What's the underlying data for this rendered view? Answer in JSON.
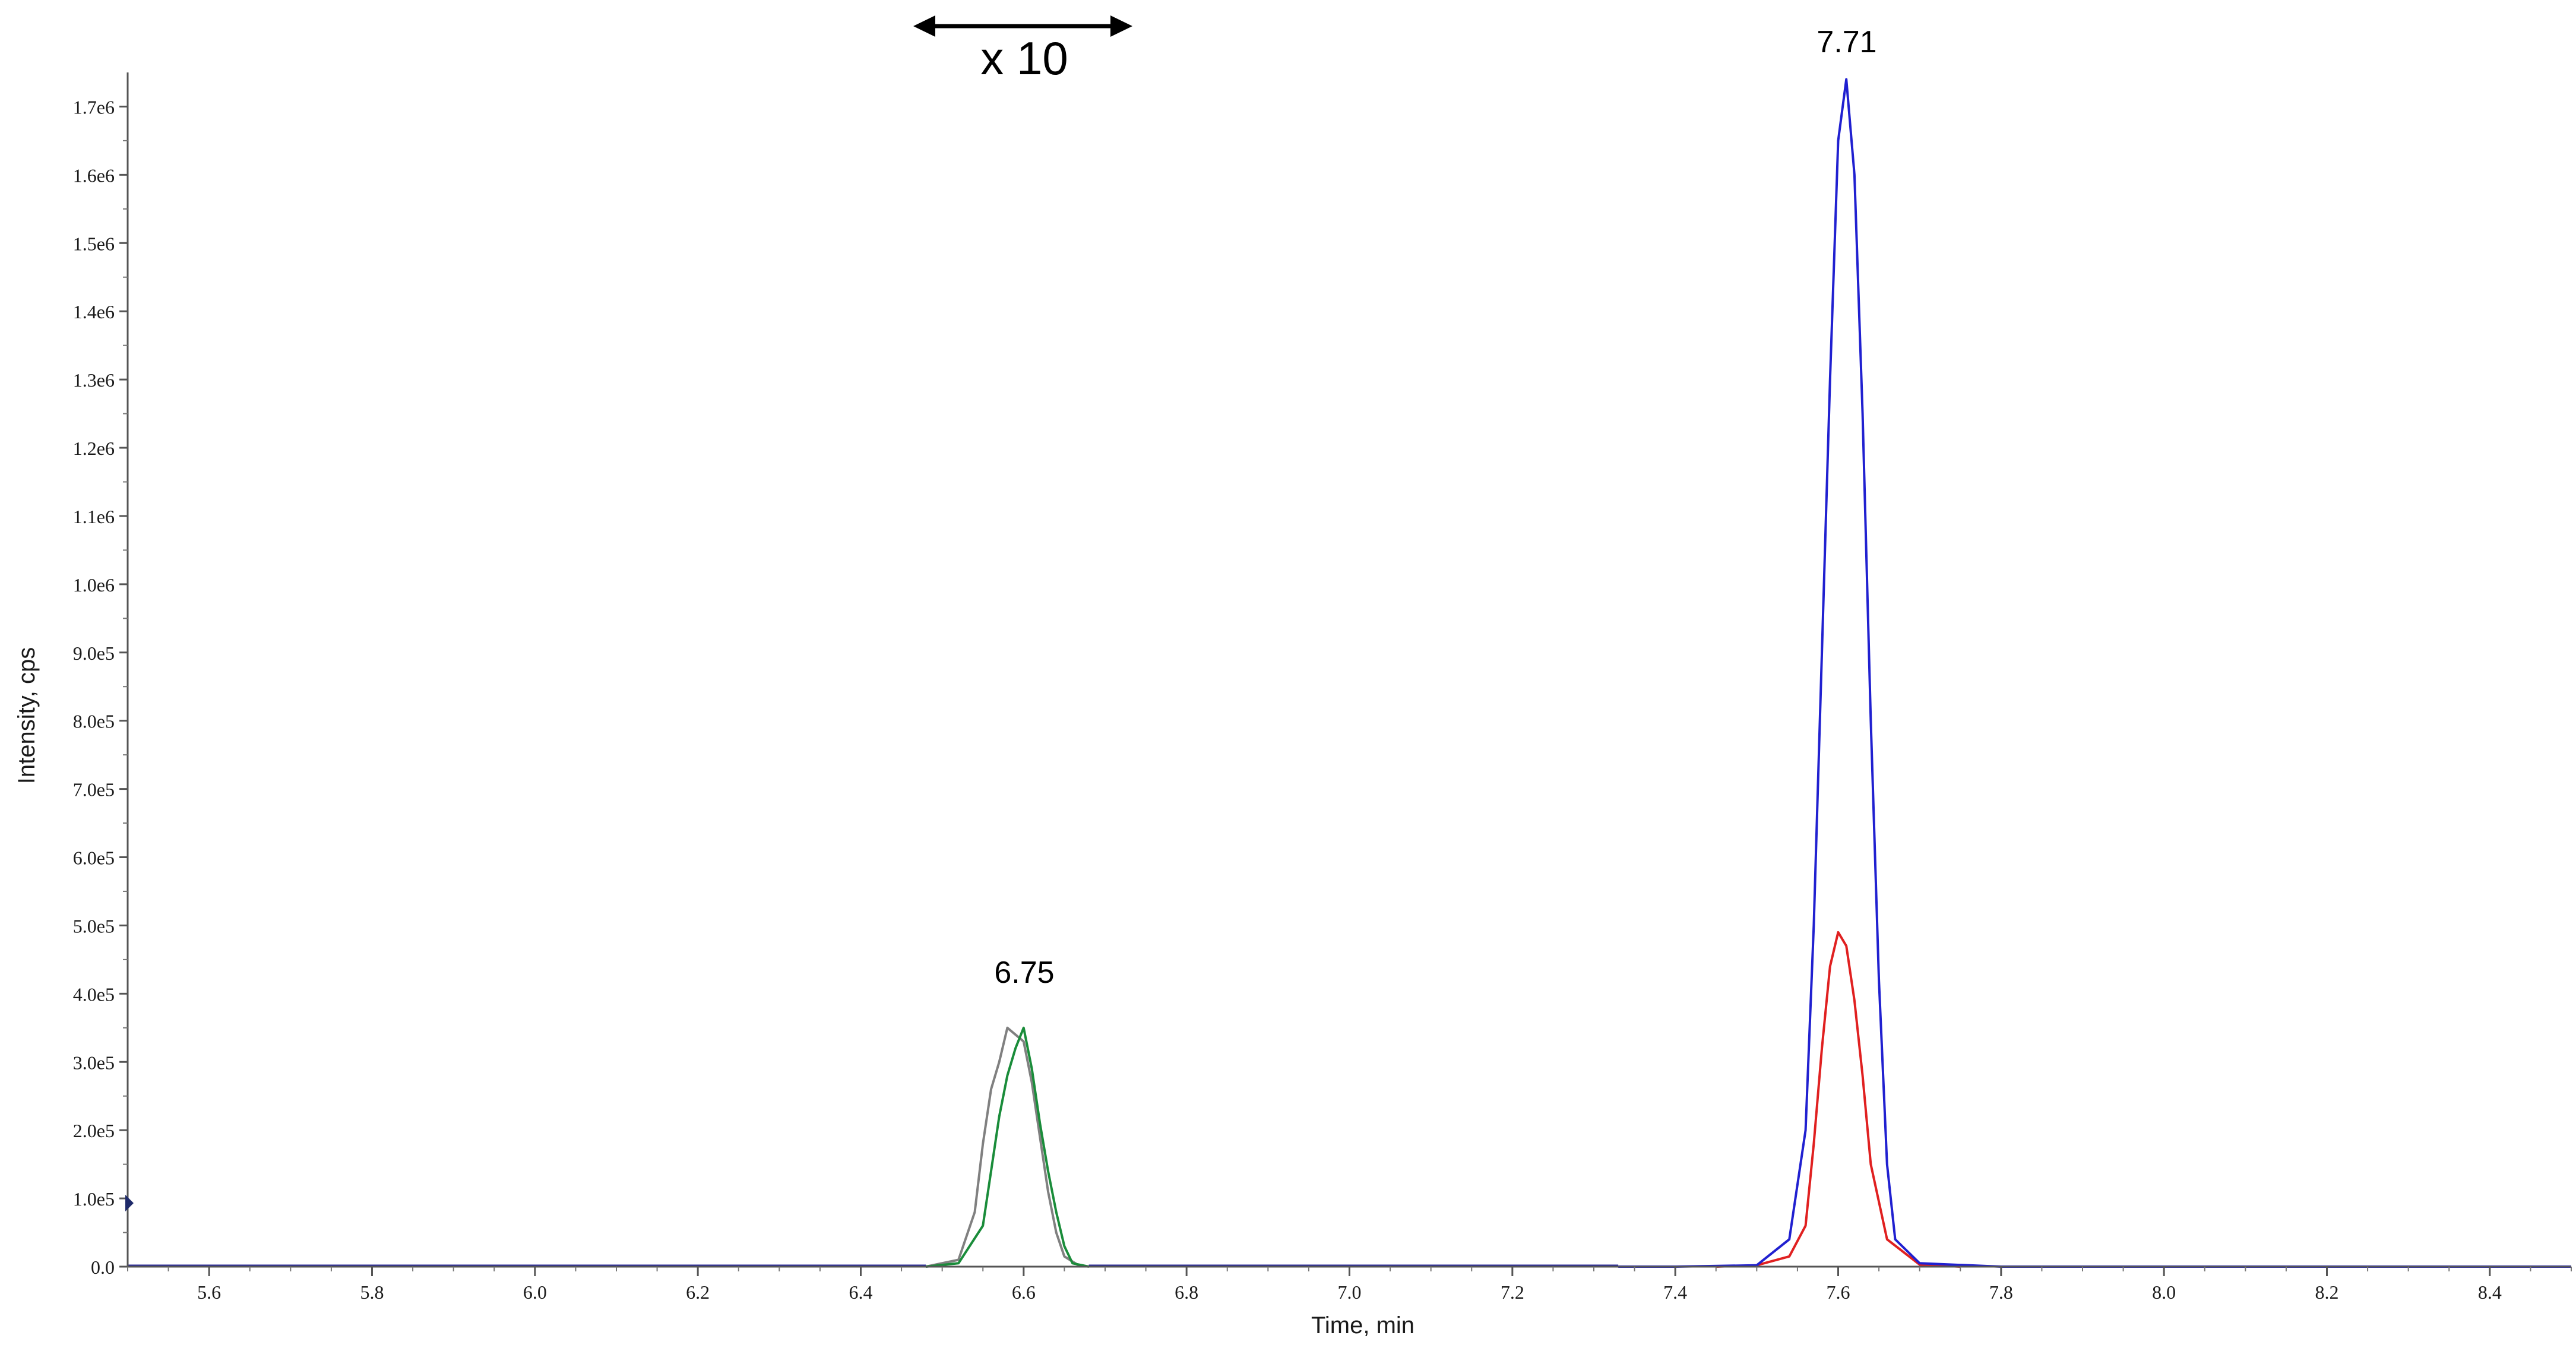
{
  "chart_data": {
    "type": "line",
    "xlabel": "Time, min",
    "ylabel": "Intensity, cps",
    "xlim": [
      5.5,
      8.5
    ],
    "ylim": [
      0,
      1750000
    ],
    "x_ticks": [
      "5.6",
      "5.8",
      "6.0",
      "6.2",
      "6.4",
      "6.6",
      "6.8",
      "7.0",
      "7.2",
      "7.4",
      "7.6",
      "7.8",
      "8.0",
      "8.2",
      "8.4"
    ],
    "y_ticks": [
      "0.0",
      "1.0e5",
      "2.0e5",
      "3.0e5",
      "4.0e5",
      "5.0e5",
      "6.0e5",
      "7.0e5",
      "8.0e5",
      "9.0e5",
      "1.0e6",
      "1.1e6",
      "1.2e6",
      "1.3e6",
      "1.4e6",
      "1.5e6",
      "1.6e6",
      "1.7e6"
    ],
    "grid": false,
    "series": [
      {
        "color": "#808080",
        "x": [
          6.48,
          6.52,
          6.54,
          6.55,
          6.56,
          6.57,
          6.58,
          6.59,
          6.6,
          6.61,
          6.62,
          6.63,
          6.64,
          6.65,
          6.67
        ],
        "y": [
          0,
          10000,
          80000,
          180000,
          260000,
          300000,
          350000,
          340000,
          330000,
          270000,
          190000,
          110000,
          50000,
          15000,
          0
        ]
      },
      {
        "color": "#1a8c3a",
        "x": [
          6.48,
          6.52,
          6.55,
          6.56,
          6.57,
          6.58,
          6.59,
          6.6,
          6.61,
          6.62,
          6.63,
          6.64,
          6.65,
          6.66,
          6.68
        ],
        "y": [
          0,
          5000,
          60000,
          140000,
          220000,
          280000,
          320000,
          350000,
          290000,
          210000,
          140000,
          80000,
          30000,
          5000,
          0
        ]
      },
      {
        "color": "#e02020",
        "x": [
          7.45,
          7.5,
          7.54,
          7.56,
          7.57,
          7.58,
          7.59,
          7.6,
          7.61,
          7.62,
          7.63,
          7.64,
          7.66,
          7.7,
          7.75
        ],
        "y": [
          0,
          2000,
          15000,
          60000,
          180000,
          320000,
          440000,
          490000,
          470000,
          390000,
          280000,
          150000,
          40000,
          3000,
          0
        ]
      },
      {
        "color": "#2020d0",
        "x": [
          7.33,
          7.4,
          7.5,
          7.54,
          7.56,
          7.57,
          7.58,
          7.59,
          7.6,
          7.61,
          7.62,
          7.63,
          7.64,
          7.65,
          7.66,
          7.67,
          7.7,
          7.8,
          8.0,
          8.2,
          8.5
        ],
        "y": [
          0,
          0,
          2000,
          40000,
          200000,
          500000,
          900000,
          1300000,
          1650000,
          1740000,
          1600000,
          1250000,
          800000,
          420000,
          150000,
          40000,
          5000,
          0,
          0,
          0,
          0
        ]
      }
    ],
    "annotations": {
      "peak_1": "6.75",
      "peak_2": "7.71",
      "zoom": "x 10"
    }
  }
}
